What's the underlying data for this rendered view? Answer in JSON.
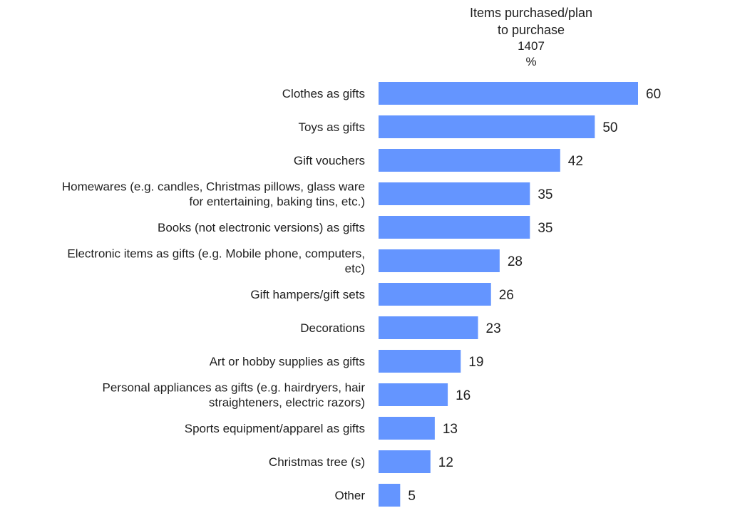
{
  "header": {
    "title": "Items purchased/plan\nto purchase",
    "base": "1407",
    "unit": "%"
  },
  "chart_data": {
    "type": "bar",
    "orientation": "horizontal",
    "categories": [
      [
        "Clothes as gifts"
      ],
      [
        "Toys as gifts"
      ],
      [
        "Gift vouchers"
      ],
      [
        "Homewares (e.g. candles, Christmas pillows, glass ware",
        "for entertaining, baking tins, etc.)"
      ],
      [
        "Books (not electronic versions) as gifts"
      ],
      [
        "Electronic items as gifts (e.g. Mobile phone, computers,",
        "etc)"
      ],
      [
        "Gift hampers/gift sets"
      ],
      [
        "Decorations"
      ],
      [
        "Art or hobby supplies as gifts"
      ],
      [
        "Personal appliances as gifts (e.g. hairdryers, hair",
        "straighteners, electric razors)"
      ],
      [
        "Sports equipment/apparel as gifts"
      ],
      [
        "Christmas tree (s)"
      ],
      [
        "Other"
      ]
    ],
    "values": [
      60,
      50,
      42,
      35,
      35,
      28,
      26,
      23,
      19,
      16,
      13,
      12,
      5
    ],
    "bar_color": "#6495ff",
    "xlim": [
      0,
      60
    ],
    "grid": false,
    "legend": "none"
  }
}
